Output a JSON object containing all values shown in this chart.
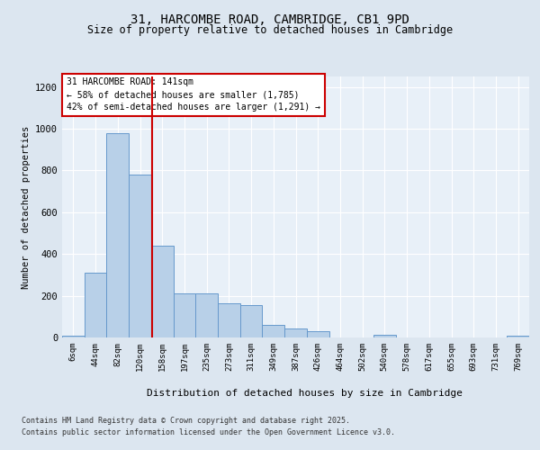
{
  "title1": "31, HARCOMBE ROAD, CAMBRIDGE, CB1 9PD",
  "title2": "Size of property relative to detached houses in Cambridge",
  "xlabel": "Distribution of detached houses by size in Cambridge",
  "ylabel": "Number of detached properties",
  "categories": [
    "6sqm",
    "44sqm",
    "82sqm",
    "120sqm",
    "158sqm",
    "197sqm",
    "235sqm",
    "273sqm",
    "311sqm",
    "349sqm",
    "387sqm",
    "426sqm",
    "464sqm",
    "502sqm",
    "540sqm",
    "578sqm",
    "617sqm",
    "655sqm",
    "693sqm",
    "731sqm",
    "769sqm"
  ],
  "values": [
    10,
    310,
    980,
    780,
    440,
    210,
    210,
    165,
    155,
    60,
    45,
    30,
    0,
    0,
    15,
    0,
    0,
    0,
    0,
    0,
    8
  ],
  "bar_color": "#b8d0e8",
  "bar_edge_color": "#6699cc",
  "vline_color": "#cc0000",
  "annotation_title": "31 HARCOMBE ROAD: 141sqm",
  "annotation_line1": "← 58% of detached houses are smaller (1,785)",
  "annotation_line2": "42% of semi-detached houses are larger (1,291) →",
  "annotation_box_color": "#ffffff",
  "annotation_box_edge": "#cc0000",
  "ylim": [
    0,
    1250
  ],
  "yticks": [
    0,
    200,
    400,
    600,
    800,
    1000,
    1200
  ],
  "footnote1": "Contains HM Land Registry data © Crown copyright and database right 2025.",
  "footnote2": "Contains public sector information licensed under the Open Government Licence v3.0.",
  "bg_color": "#dce6f0",
  "plot_bg_color": "#e8f0f8"
}
